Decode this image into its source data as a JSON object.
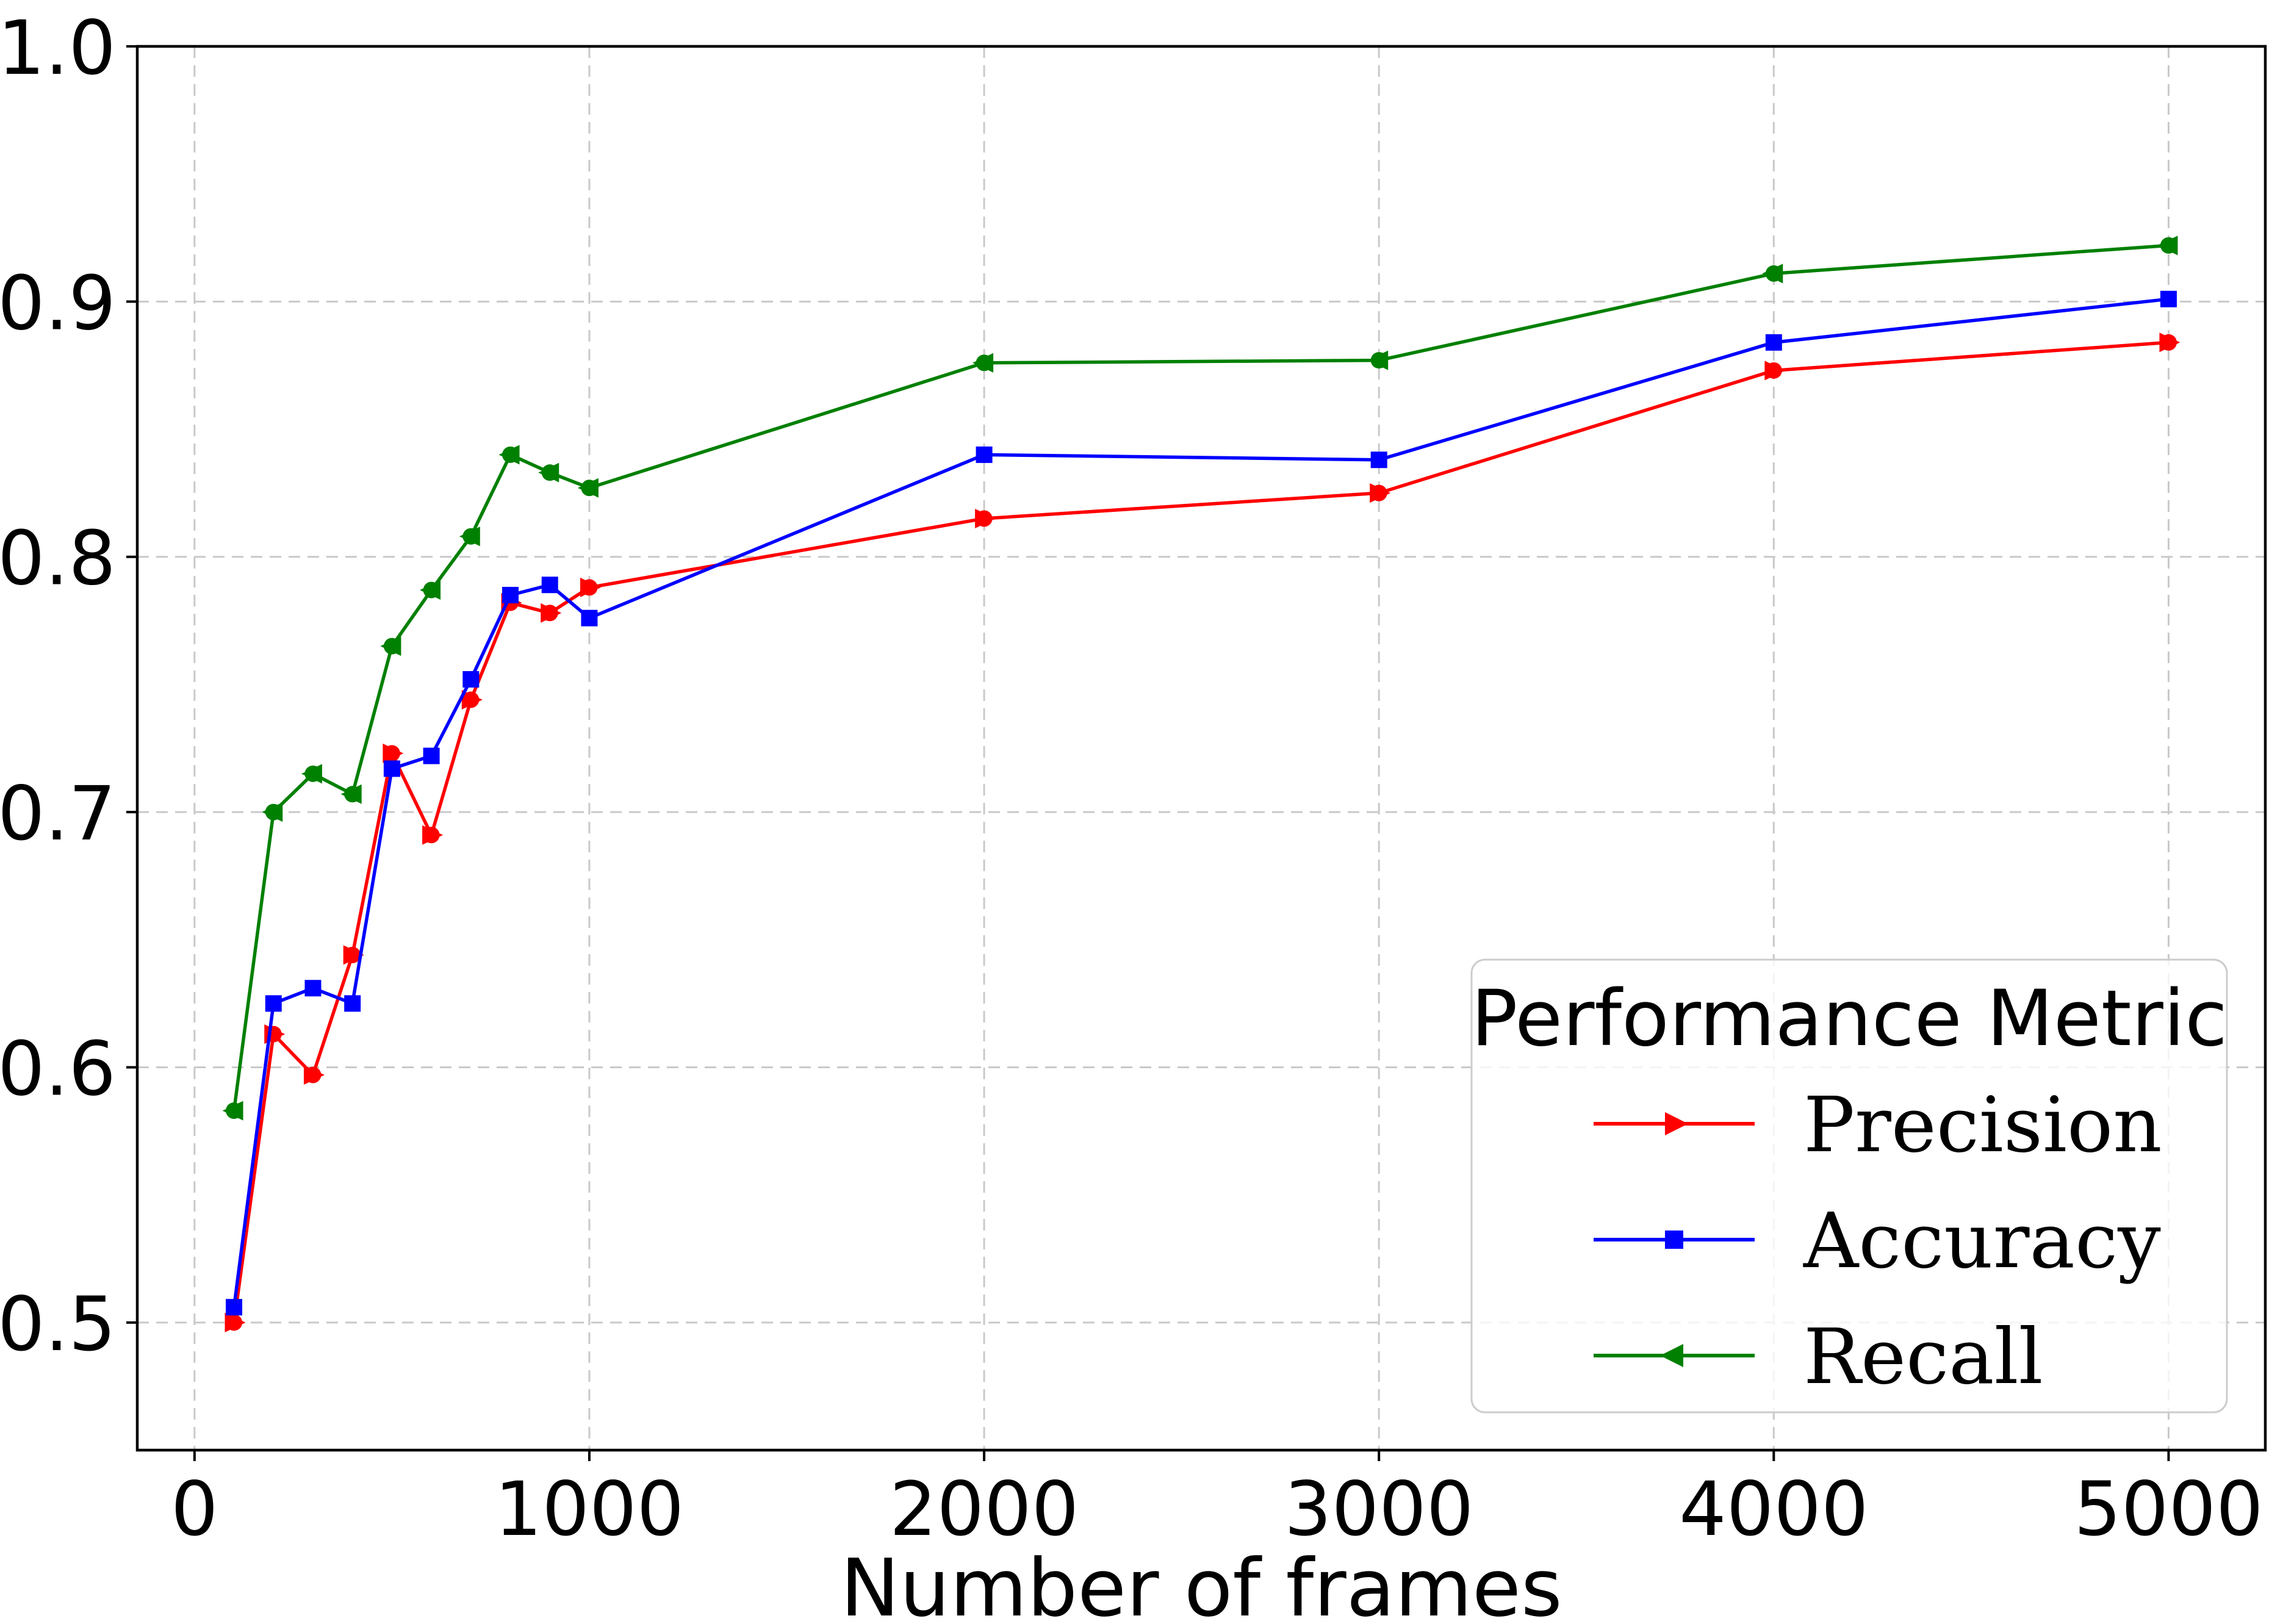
{
  "figure": {
    "background": "#ffffff",
    "axis_color": "#000000",
    "grid_color": "#c9c9c9",
    "legend_border_color": "#cccccc",
    "legend_fill": "rgba(255,255,255,0.8)"
  },
  "chart_data": {
    "type": "line",
    "title": "",
    "xlabel": "Number of frames",
    "ylabel": "",
    "grid": true,
    "xlim": [
      -145,
      5245
    ],
    "ylim": [
      0.45,
      1.0
    ],
    "xticks": [
      {
        "value": 0,
        "label": "0"
      },
      {
        "value": 1000,
        "label": "1000"
      },
      {
        "value": 2000,
        "label": "2000"
      },
      {
        "value": 3000,
        "label": "3000"
      },
      {
        "value": 4000,
        "label": "4000"
      },
      {
        "value": 5000,
        "label": "5000"
      }
    ],
    "yticks": [
      {
        "value": 0.5,
        "label": "0.5"
      },
      {
        "value": 0.6,
        "label": "0.6"
      },
      {
        "value": 0.7,
        "label": "0.7"
      },
      {
        "value": 0.8,
        "label": "0.8"
      },
      {
        "value": 0.9,
        "label": "0.9"
      },
      {
        "value": 1.0,
        "label": "1.0"
      }
    ],
    "x": [
      100,
      200,
      300,
      400,
      500,
      600,
      700,
      800,
      900,
      1000,
      2000,
      3000,
      4000,
      5000
    ],
    "series": [
      {
        "name": "Precision",
        "color": "#ff0000",
        "marker": "circle-right-triangle",
        "values": [
          0.5,
          0.613,
          0.597,
          0.644,
          0.723,
          0.691,
          0.744,
          0.782,
          0.778,
          0.788,
          0.815,
          0.825,
          0.873,
          0.884
        ]
      },
      {
        "name": "Accuracy",
        "color": "#0000ff",
        "marker": "square",
        "values": [
          0.506,
          0.625,
          0.631,
          0.625,
          0.717,
          0.722,
          0.752,
          0.785,
          0.789,
          0.776,
          0.84,
          0.838,
          0.884,
          0.901
        ]
      },
      {
        "name": "Recall",
        "color": "#008000",
        "marker": "circle-left-triangle",
        "values": [
          0.583,
          0.7,
          0.715,
          0.707,
          0.765,
          0.787,
          0.808,
          0.84,
          0.833,
          0.827,
          0.876,
          0.877,
          0.911,
          0.922
        ]
      }
    ],
    "legend": {
      "title": "Performance Metric",
      "position": "lower right",
      "entries": [
        "Precision",
        "Accuracy",
        "Recall"
      ]
    }
  }
}
